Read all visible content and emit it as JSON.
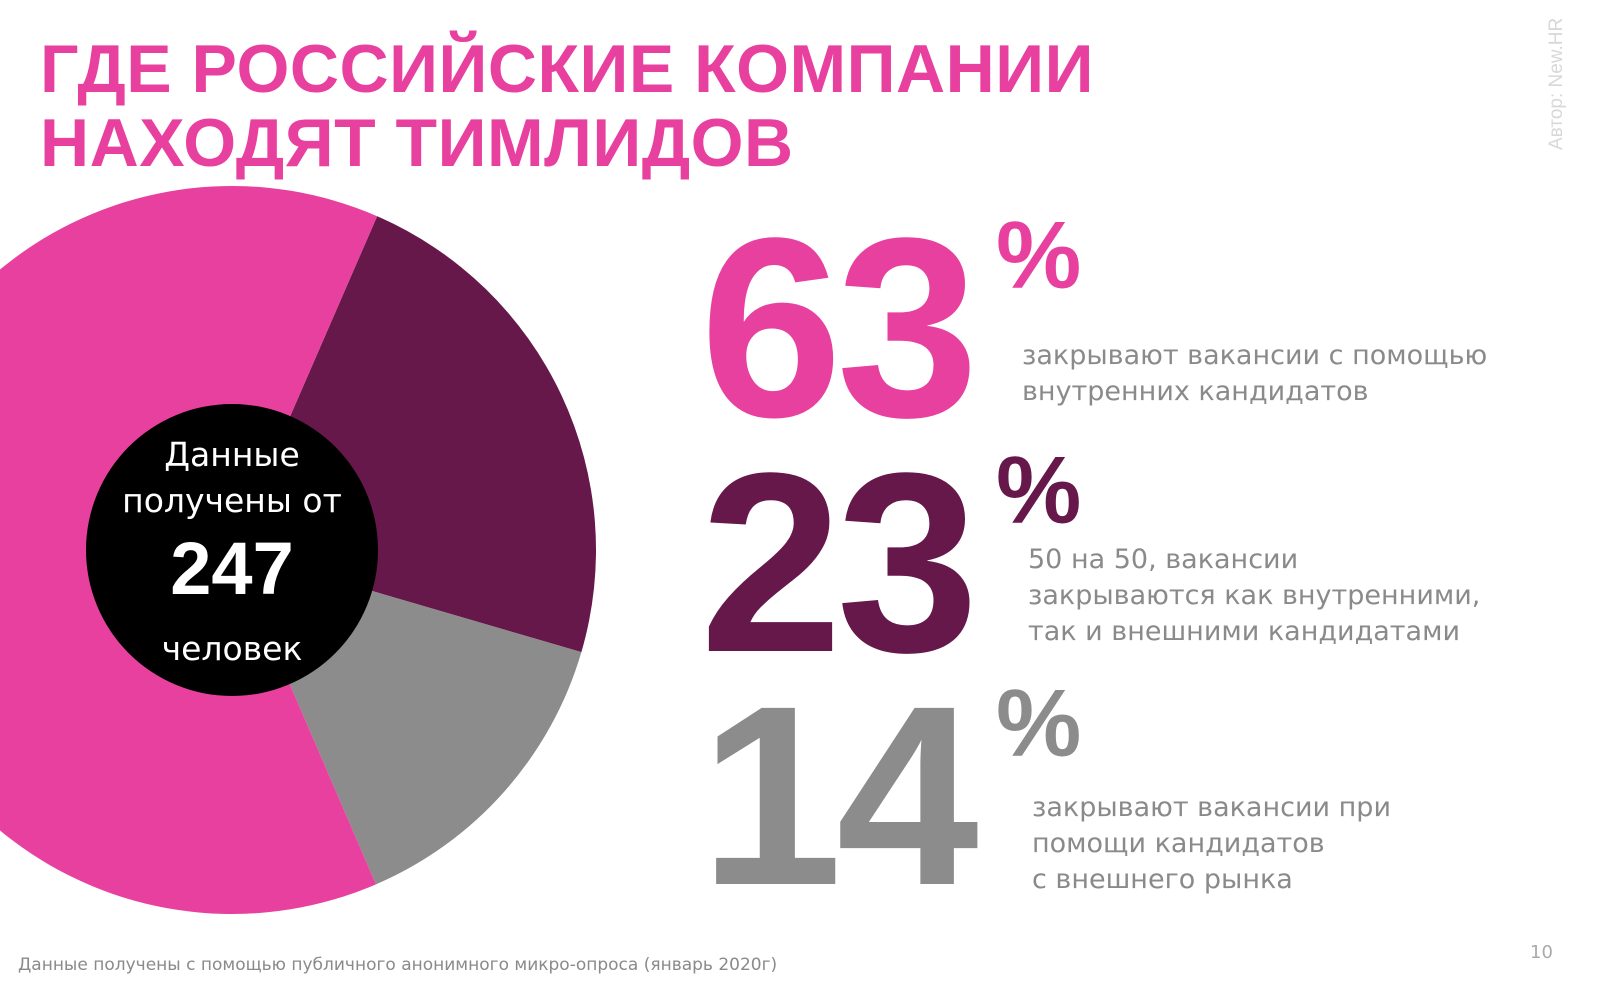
{
  "title_lines": [
    "ГДЕ РОССИЙСКИЕ КОМПАНИИ",
    "НАХОДЯТ ТИМЛИДОВ"
  ],
  "author": "Автор: New.HR",
  "center": {
    "line1": "Данные",
    "line2": "получены от",
    "count": "247",
    "line3": "человек"
  },
  "chart_data": {
    "type": "pie",
    "start_angle_deg_clockwise_from_top": 23.5,
    "slices": [
      {
        "label": "закрывают вакансии с помощью внутренних кандидатов",
        "value": 63,
        "color": "#e8409f"
      },
      {
        "label": "50 на 50, вакансии закрываются как внутренними, так и внешними кандидатами",
        "value": 23,
        "color": "#66184a"
      },
      {
        "label": "закрывают вакансии при помощи кандидатов с внешнего рынка",
        "value": 14,
        "color": "#8c8c8c"
      }
    ],
    "slice_order_clockwise": [
      1,
      2,
      0
    ]
  },
  "stats": [
    {
      "number": "63",
      "pct": "%",
      "color": "#e8409f",
      "desc": [
        "закрывают вакансии с помощью",
        "внутренних кандидатов"
      ]
    },
    {
      "number": "23",
      "pct": "%",
      "color": "#66184a",
      "desc": [
        "50 на 50, вакансии",
        "закрываются как внутренними,",
        "так и внешними кандидатами"
      ]
    },
    {
      "number": "14",
      "pct": "%",
      "color": "#8c8c8c",
      "desc": [
        "закрывают вакансии при",
        "помощи кандидатов",
        "с внешнего рынка"
      ]
    }
  ],
  "footnote": "Данные получены с помощью публичного анонимного микро-опроса (январь 2020г)",
  "page_number": "10"
}
